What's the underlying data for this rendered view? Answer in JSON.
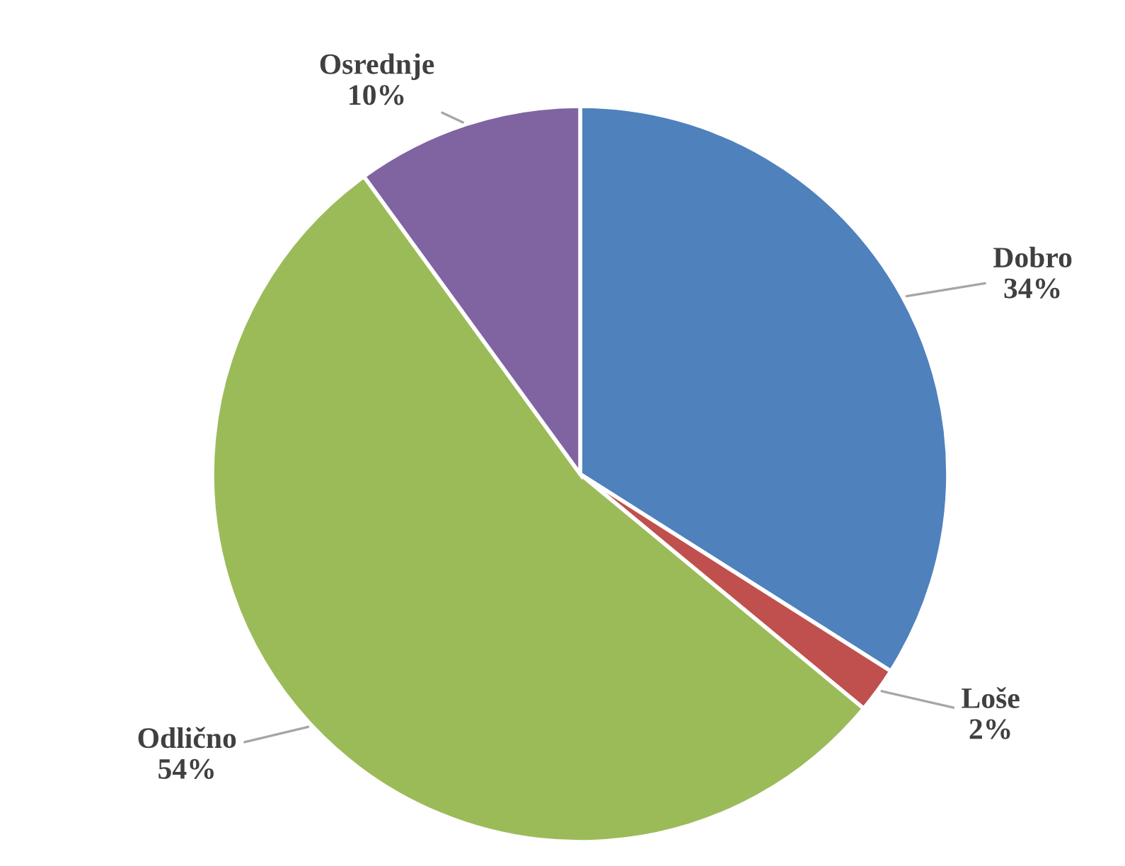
{
  "chart_data": {
    "type": "pie",
    "categories": [
      "Dobro",
      "Loše",
      "Odlično",
      "Osrednje"
    ],
    "values": [
      34,
      2,
      54,
      10
    ],
    "colors": [
      "#4f81bd",
      "#c0504d",
      "#9bbb59",
      "#8064a2"
    ],
    "value_labels": [
      "34%",
      "2%",
      "54%",
      "10%"
    ]
  }
}
